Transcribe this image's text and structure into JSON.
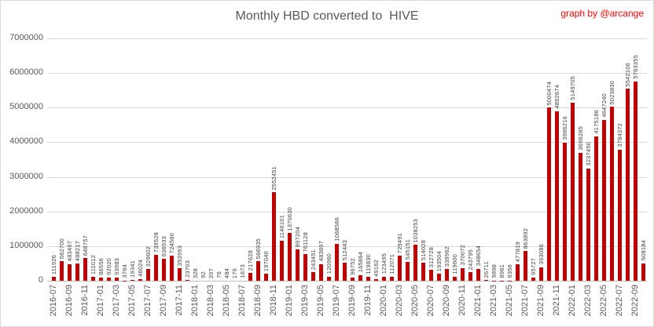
{
  "header": {
    "title": "Monthly HBD converted to  HIVE",
    "credit": "graph by @arcange"
  },
  "chart_data": {
    "type": "bar",
    "title": "Monthly HBD converted to  HIVE",
    "credit": "graph by @arcange",
    "xlabel": "",
    "ylabel": "",
    "ylim": [
      0,
      7000000
    ],
    "yticks": [
      0,
      1000000,
      2000000,
      3000000,
      4000000,
      5000000,
      6000000,
      7000000
    ],
    "xtick_every": 2,
    "grid": true,
    "legend": false,
    "bar_color": "#c00000",
    "credit_color": "#ff0000",
    "categories": [
      "2016-07",
      "2016-08",
      "2016-09",
      "2016-10",
      "2016-11",
      "2016-12",
      "2017-01",
      "2017-02",
      "2017-03",
      "2017-04",
      "2017-05",
      "2017-06",
      "2017-07",
      "2017-08",
      "2017-09",
      "2017-10",
      "2017-11",
      "2017-12",
      "2018-01",
      "2018-02",
      "2018-03",
      "2018-04",
      "2018-05",
      "2018-06",
      "2018-07",
      "2018-08",
      "2018-09",
      "2018-10",
      "2018-11",
      "2018-12",
      "2019-01",
      "2019-02",
      "2019-03",
      "2019-04",
      "2019-05",
      "2019-06",
      "2019-07",
      "2019-08",
      "2019-09",
      "2019-10",
      "2019-11",
      "2019-12",
      "2020-01",
      "2020-02",
      "2020-03",
      "2020-04",
      "2020-05",
      "2020-06",
      "2020-07",
      "2020-08",
      "2020-09",
      "2020-10",
      "2020-11",
      "2020-12",
      "2021-01",
      "2021-02",
      "2021-03",
      "2021-04",
      "2021-05",
      "2021-06",
      "2021-07",
      "2021-08",
      "2021-09",
      "2021-10",
      "2021-11",
      "2021-12",
      "2022-01",
      "2022-02",
      "2022-03",
      "2022-04",
      "2022-05",
      "2022-06",
      "2022-07",
      "2022-08",
      "2022-09",
      "2022-10"
    ],
    "values": [
      111926,
      562700,
      483497,
      488217,
      648757,
      111012,
      86556,
      92020,
      93983,
      3764,
      19341,
      46024,
      329602,
      739528,
      636933,
      724560,
      353993,
      23703,
      328,
      92,
      207,
      76,
      484,
      179,
      1673,
      217628,
      566935,
      197040,
      2552451,
      1146101,
      1370630,
      897204,
      761128,
      243451,
      483897,
      120960,
      1068566,
      512443,
      96752,
      165864,
      119830,
      49162,
      123495,
      112071,
      729491,
      545151,
      1038253,
      514028,
      312728,
      193504,
      339962,
      119600,
      370072,
      243795,
      348654,
      26711,
      9898,
      8961,
      9356,
      477819,
      863892,
      95727,
      393086,
      5000474,
      4892674,
      3986216,
      5149705,
      3696285,
      3237450,
      4175186,
      4647240,
      5023830,
      3784372,
      5542106,
      5763355,
      508184
    ]
  }
}
